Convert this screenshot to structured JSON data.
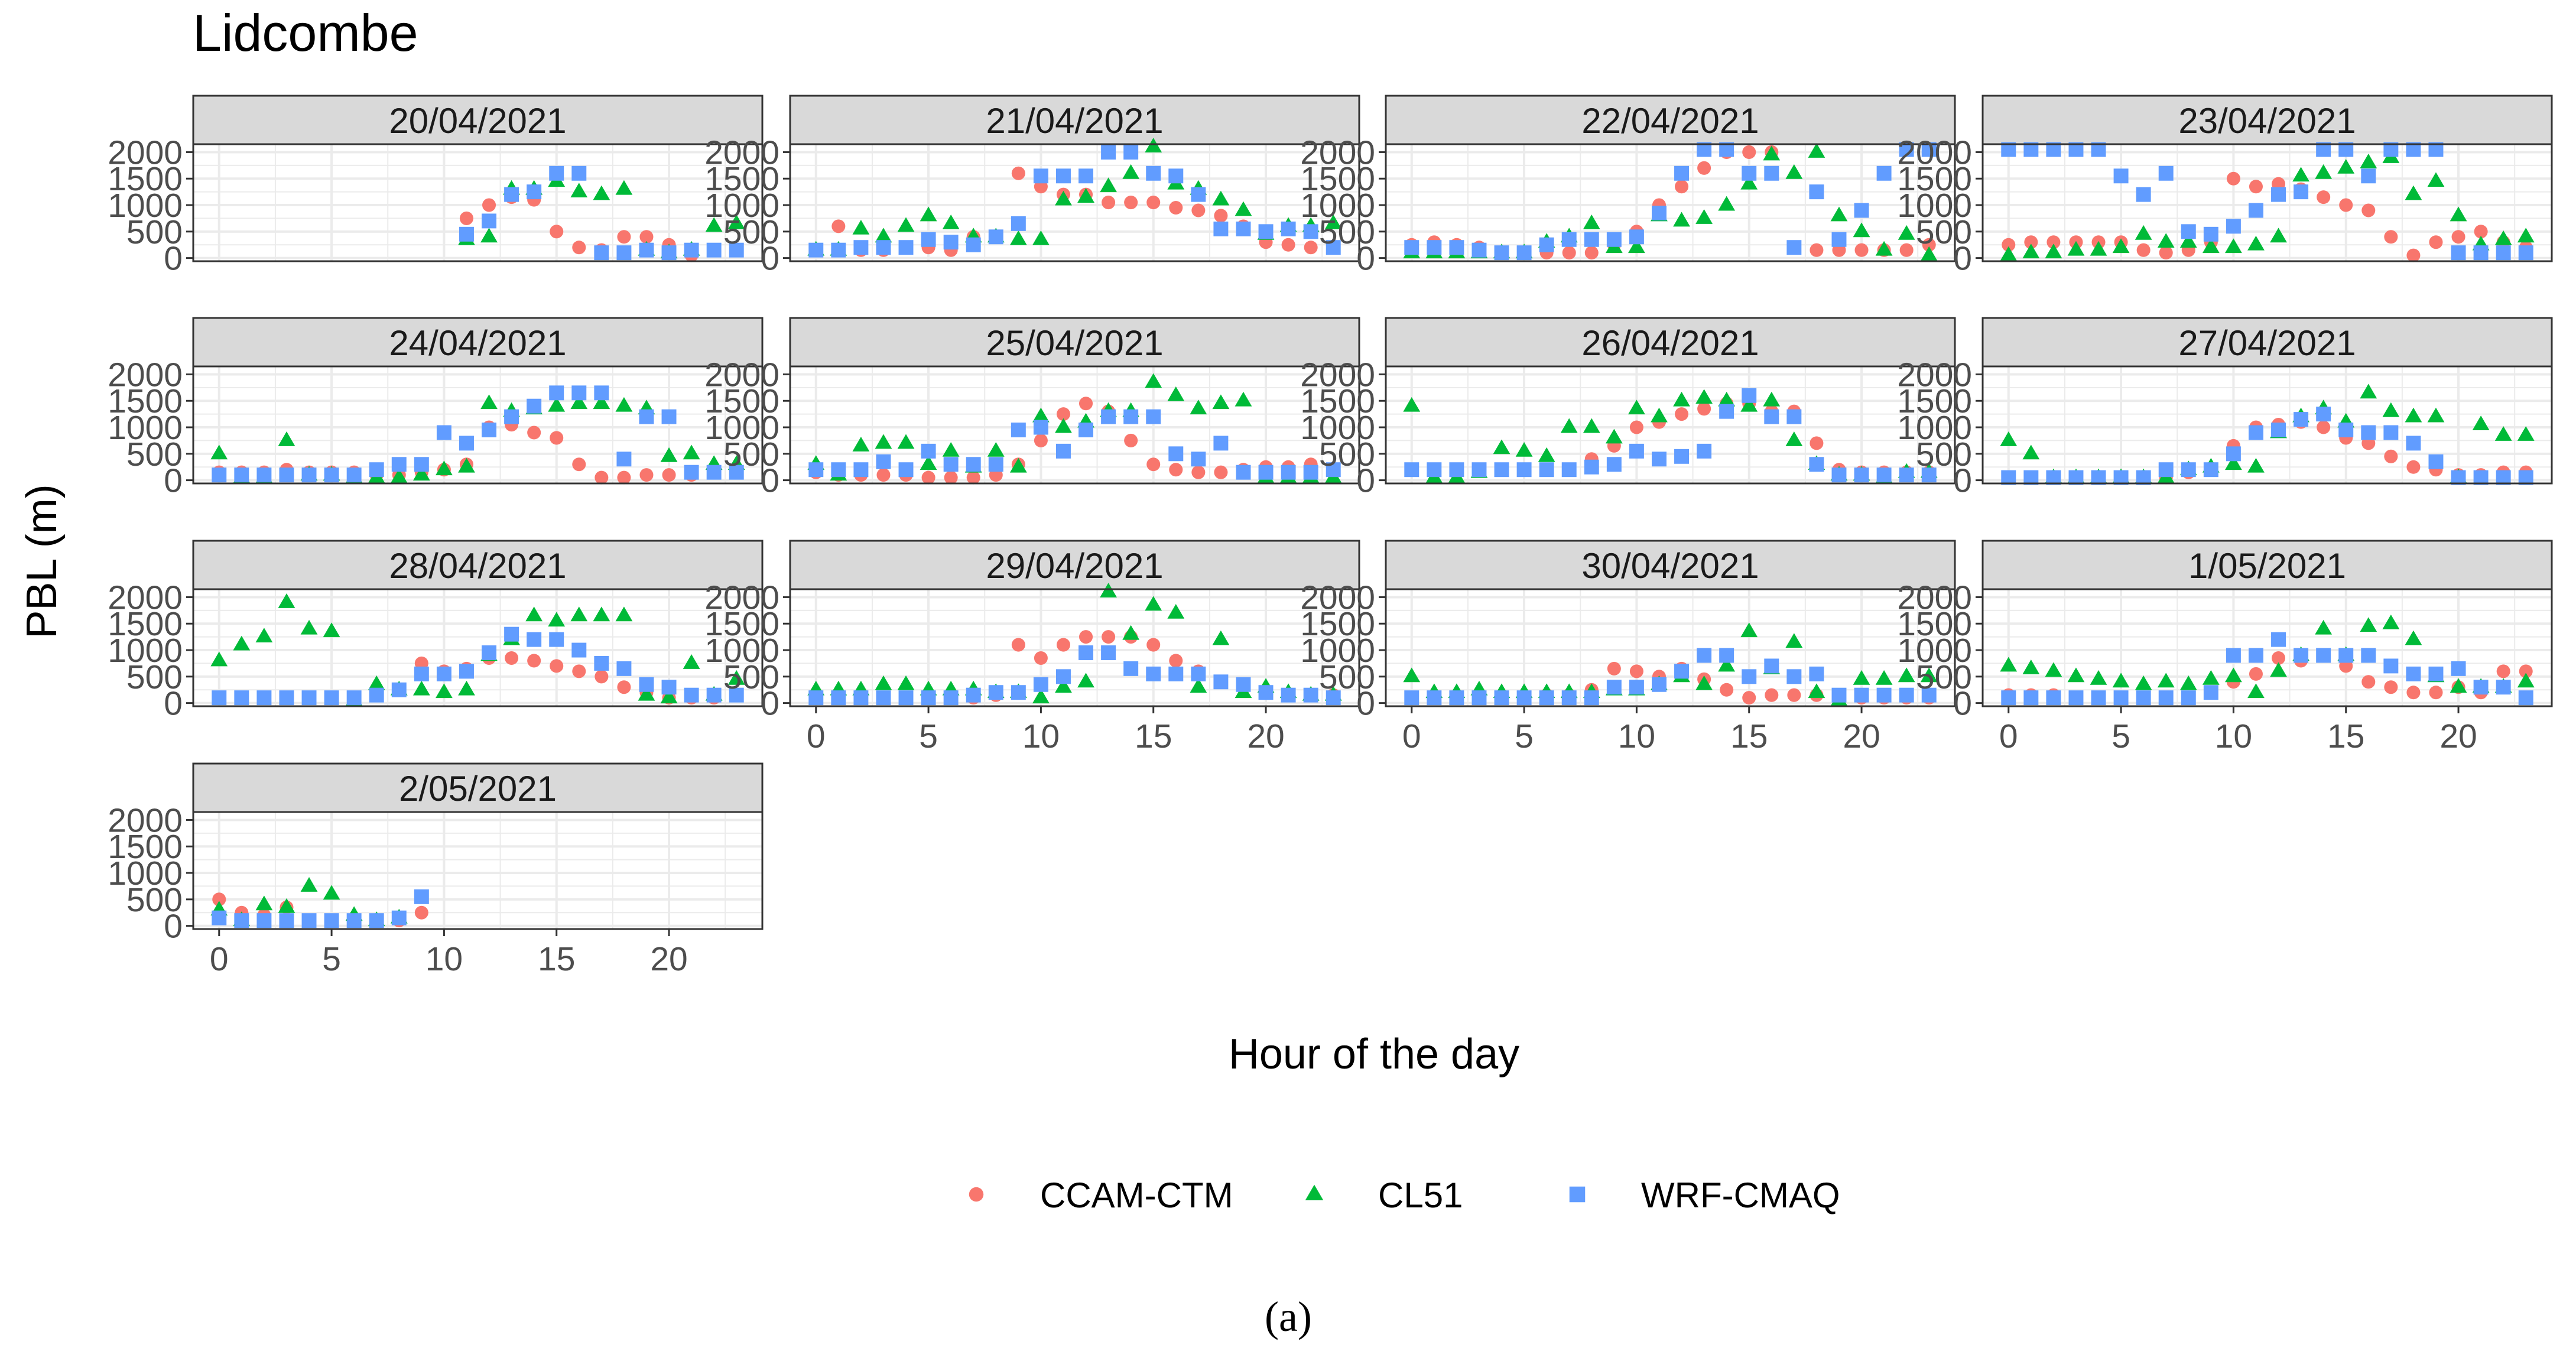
{
  "figure": {
    "title": "Lidcombe",
    "xlabel": "Hour of the day",
    "ylabel": "PBL (m)",
    "caption": "(a)"
  },
  "legend": {
    "placement": "bottom",
    "items": [
      {
        "label": "CCAM-CTM",
        "shape": "circle",
        "color": "#F8766D"
      },
      {
        "label": "CL51",
        "shape": "triangle",
        "color": "#00BA38"
      },
      {
        "label": "WRF-CMAQ",
        "shape": "square",
        "color": "#619CFF"
      }
    ]
  },
  "colors": {
    "strip_fill": "#d9d9d9",
    "grid": "#ebebeb",
    "border": "#333333",
    "tick_text": "#4d4d4d"
  },
  "chart_data": {
    "type": "scatter",
    "facet_by": "date",
    "x": [
      0,
      1,
      2,
      3,
      4,
      5,
      6,
      7,
      8,
      9,
      10,
      11,
      12,
      13,
      14,
      15,
      16,
      17,
      18,
      19,
      20,
      21,
      22,
      23
    ],
    "xlim": [
      -1.15,
      24.15
    ],
    "ylim": [
      -60,
      2150
    ],
    "xticks": [
      0,
      5,
      10,
      15,
      20
    ],
    "yticks": [
      0,
      500,
      1000,
      1500,
      2000
    ],
    "xlabel": "Hour of the day",
    "ylabel": "PBL (m)",
    "panels": [
      {
        "date": "20/04/2021",
        "CCAM-CTM": [
          null,
          null,
          null,
          null,
          null,
          null,
          null,
          null,
          null,
          null,
          null,
          750,
          1000,
          1150,
          1100,
          500,
          200,
          150,
          400,
          400,
          250,
          50,
          null,
          null
        ],
        "CL51": [
          null,
          null,
          null,
          null,
          null,
          null,
          null,
          null,
          null,
          null,
          null,
          350,
          400,
          1300,
          1300,
          1450,
          1250,
          1200,
          1300,
          150,
          100,
          150,
          600,
          650
        ],
        "WRF-CMAQ": [
          null,
          null,
          null,
          null,
          null,
          null,
          null,
          null,
          null,
          null,
          null,
          450,
          700,
          1200,
          1250,
          1600,
          1600,
          100,
          100,
          150,
          100,
          150,
          150,
          150
        ]
      },
      {
        "date": "21/04/2021",
        "CCAM-CTM": [
          150,
          600,
          150,
          150,
          200,
          200,
          150,
          400,
          400,
          1600,
          1350,
          1200,
          1200,
          1050,
          1050,
          1050,
          950,
          900,
          800,
          600,
          300,
          250,
          200,
          200
        ],
        "CL51": [
          150,
          150,
          550,
          400,
          600,
          800,
          650,
          400,
          400,
          350,
          350,
          1100,
          1150,
          1350,
          1600,
          2100,
          1400,
          1300,
          1100,
          900,
          450,
          600,
          600,
          650
        ],
        "WRF-CMAQ": [
          150,
          150,
          200,
          200,
          200,
          350,
          300,
          250,
          400,
          650,
          1550,
          1550,
          1550,
          2000,
          2000,
          1600,
          1550,
          1200,
          550,
          550,
          500,
          550,
          500,
          200
        ]
      },
      {
        "date": "22/04/2021",
        "CCAM-CTM": [
          250,
          300,
          250,
          200,
          100,
          100,
          100,
          100,
          100,
          250,
          500,
          1000,
          1350,
          1700,
          2000,
          2000,
          2000,
          200,
          150,
          150,
          150,
          150,
          150,
          250
        ],
        "CL51": [
          100,
          100,
          100,
          100,
          100,
          100,
          300,
          400,
          650,
          200,
          200,
          800,
          700,
          750,
          1000,
          1400,
          1950,
          1600,
          2000,
          800,
          500,
          150,
          450,
          50
        ],
        "WRF-CMAQ": [
          200,
          200,
          200,
          150,
          100,
          100,
          250,
          350,
          350,
          350,
          400,
          850,
          1600,
          2050,
          2050,
          1600,
          1600,
          200,
          1250,
          350,
          900,
          1600,
          2050,
          2050
        ]
      },
      {
        "date": "23/04/2021",
        "CCAM-CTM": [
          250,
          300,
          300,
          300,
          300,
          300,
          150,
          100,
          150,
          300,
          1500,
          1350,
          1400,
          1300,
          1150,
          1000,
          900,
          400,
          50,
          300,
          400,
          500,
          300,
          200
        ],
        "CL51": [
          50,
          100,
          100,
          150,
          150,
          200,
          450,
          300,
          300,
          200,
          200,
          250,
          400,
          1550,
          1600,
          1700,
          1800,
          1900,
          1200,
          1450,
          800,
          250,
          350,
          400
        ],
        "WRF-CMAQ": [
          2050,
          2050,
          2050,
          2050,
          2050,
          1550,
          1200,
          1600,
          500,
          450,
          600,
          900,
          1200,
          1250,
          2050,
          2050,
          1550,
          2050,
          2050,
          2050,
          100,
          100,
          100,
          100
        ]
      },
      {
        "date": "24/04/2021",
        "CCAM-CTM": [
          150,
          150,
          150,
          200,
          150,
          150,
          150,
          100,
          100,
          150,
          200,
          300,
          1000,
          1050,
          900,
          800,
          300,
          50,
          50,
          100,
          100,
          100,
          null,
          null
        ],
        "CL51": [
          500,
          50,
          50,
          750,
          100,
          100,
          50,
          50,
          50,
          100,
          200,
          250,
          1450,
          1300,
          1350,
          1400,
          1450,
          1450,
          1400,
          1350,
          450,
          500,
          300,
          300
        ],
        "WRF-CMAQ": [
          100,
          100,
          100,
          100,
          100,
          100,
          100,
          200,
          300,
          300,
          900,
          700,
          950,
          1200,
          1400,
          1650,
          1650,
          1650,
          400,
          1200,
          1200,
          150,
          150,
          150
        ]
      },
      {
        "date": "25/04/2021",
        "CCAM-CTM": [
          150,
          100,
          100,
          100,
          100,
          50,
          50,
          50,
          100,
          300,
          750,
          1250,
          1450,
          1300,
          750,
          300,
          200,
          150,
          150,
          200,
          250,
          250,
          300,
          200
        ],
        "CL51": [
          300,
          100,
          650,
          700,
          700,
          300,
          550,
          250,
          550,
          250,
          1200,
          1000,
          1100,
          1300,
          1300,
          1850,
          1600,
          1350,
          1450,
          1500,
          50,
          50,
          50,
          50
        ],
        "WRF-CMAQ": [
          200,
          200,
          200,
          350,
          200,
          550,
          300,
          300,
          300,
          950,
          1000,
          550,
          950,
          1200,
          1200,
          1200,
          500,
          400,
          700,
          150,
          150,
          150,
          150,
          200
        ]
      },
      {
        "date": "26/04/2021",
        "CCAM-CTM": [
          200,
          200,
          200,
          200,
          200,
          200,
          200,
          200,
          400,
          650,
          1000,
          1100,
          1250,
          1350,
          1450,
          1450,
          1300,
          1300,
          700,
          200,
          150,
          150,
          150,
          150
        ],
        "CL51": [
          1400,
          50,
          50,
          150,
          600,
          550,
          450,
          1000,
          1000,
          800,
          1350,
          1200,
          1500,
          1550,
          1500,
          1400,
          1500,
          750,
          300,
          100,
          100,
          50,
          150,
          150
        ],
        "WRF-CMAQ": [
          200,
          200,
          200,
          200,
          200,
          200,
          200,
          200,
          250,
          300,
          550,
          400,
          450,
          550,
          1300,
          1600,
          1200,
          1200,
          300,
          100,
          100,
          100,
          100,
          100
        ]
      },
      {
        "date": "27/04/2021",
        "CCAM-CTM": [
          50,
          50,
          50,
          50,
          50,
          50,
          50,
          50,
          150,
          200,
          650,
          1000,
          1050,
          1100,
          1000,
          800,
          700,
          450,
          250,
          200,
          100,
          100,
          150,
          150
        ],
        "CL51": [
          750,
          500,
          50,
          50,
          50,
          50,
          50,
          50,
          200,
          250,
          300,
          250,
          900,
          1200,
          1350,
          1100,
          1650,
          1300,
          1200,
          1200,
          50,
          1050,
          850,
          850
        ],
        "WRF-CMAQ": [
          50,
          50,
          50,
          50,
          50,
          50,
          50,
          200,
          200,
          200,
          500,
          900,
          950,
          1150,
          1250,
          950,
          900,
          900,
          700,
          350,
          50,
          50,
          50,
          50
        ]
      },
      {
        "date": "28/04/2021",
        "CCAM-CTM": [
          100,
          100,
          100,
          100,
          100,
          100,
          100,
          150,
          250,
          750,
          600,
          650,
          850,
          850,
          800,
          700,
          600,
          500,
          300,
          200,
          100,
          100,
          100,
          150
        ],
        "CL51": [
          800,
          1100,
          1250,
          1900,
          1400,
          1350,
          50,
          350,
          250,
          250,
          200,
          250,
          900,
          1200,
          1650,
          1550,
          1650,
          1650,
          1650,
          150,
          100,
          750,
          150,
          450
        ],
        "WRF-CMAQ": [
          100,
          100,
          100,
          100,
          100,
          100,
          100,
          150,
          250,
          550,
          550,
          600,
          950,
          1300,
          1200,
          1200,
          1000,
          750,
          650,
          350,
          300,
          150,
          150,
          150
        ]
      },
      {
        "date": "29/04/2021",
        "CCAM-CTM": [
          150,
          100,
          100,
          100,
          100,
          100,
          100,
          100,
          150,
          1100,
          850,
          1100,
          1250,
          1250,
          1250,
          1100,
          800,
          600,
          400,
          300,
          200,
          150,
          150,
          150
        ],
        "CL51": [
          250,
          250,
          250,
          350,
          350,
          250,
          250,
          250,
          200,
          200,
          100,
          300,
          400,
          2100,
          1300,
          1850,
          1700,
          300,
          1200,
          200,
          300,
          200,
          150,
          150
        ],
        "WRF-CMAQ": [
          100,
          100,
          100,
          100,
          100,
          100,
          100,
          150,
          200,
          200,
          350,
          500,
          950,
          950,
          650,
          550,
          550,
          550,
          400,
          350,
          200,
          150,
          150,
          100
        ]
      },
      {
        "date": "30/04/2021",
        "CCAM-CTM": [
          100,
          100,
          100,
          100,
          100,
          100,
          150,
          150,
          250,
          650,
          600,
          500,
          650,
          450,
          250,
          100,
          150,
          150,
          150,
          100,
          100,
          100,
          100,
          100
        ],
        "CL51": [
          500,
          200,
          200,
          250,
          200,
          200,
          200,
          200,
          200,
          250,
          250,
          350,
          500,
          350,
          700,
          1350,
          650,
          1150,
          200,
          50,
          450,
          450,
          500,
          500
        ],
        "WRF-CMAQ": [
          100,
          100,
          100,
          100,
          100,
          100,
          100,
          100,
          100,
          300,
          300,
          350,
          600,
          900,
          900,
          500,
          700,
          500,
          550,
          150,
          150,
          150,
          150,
          150
        ]
      },
      {
        "date": "1/05/2021",
        "CCAM-CTM": [
          150,
          150,
          150,
          100,
          100,
          100,
          100,
          100,
          100,
          200,
          400,
          550,
          850,
          800,
          900,
          700,
          400,
          300,
          200,
          200,
          300,
          200,
          600,
          600
        ],
        "CL51": [
          700,
          650,
          600,
          500,
          450,
          400,
          350,
          400,
          350,
          450,
          500,
          200,
          600,
          900,
          1400,
          900,
          1450,
          1500,
          1200,
          500,
          300,
          300,
          300,
          400
        ],
        "WRF-CMAQ": [
          100,
          100,
          100,
          100,
          100,
          100,
          100,
          100,
          100,
          200,
          900,
          900,
          1200,
          900,
          900,
          900,
          900,
          700,
          550,
          550,
          650,
          300,
          300,
          100
        ]
      },
      {
        "date": "2/05/2021",
        "CCAM-CTM": [
          500,
          250,
          200,
          350,
          null,
          null,
          100,
          100,
          100,
          250,
          null,
          null,
          null,
          null,
          null,
          null,
          null,
          null,
          null,
          null,
          null,
          null,
          null,
          null
        ],
        "CL51": [
          300,
          100,
          400,
          350,
          750,
          600,
          200,
          100,
          150,
          null,
          null,
          null,
          null,
          null,
          null,
          null,
          null,
          null,
          null,
          null,
          null,
          null,
          null,
          null
        ],
        "WRF-CMAQ": [
          150,
          100,
          100,
          100,
          100,
          100,
          100,
          100,
          150,
          550,
          null,
          null,
          null,
          null,
          null,
          null,
          null,
          null,
          null,
          null,
          null,
          null,
          null,
          null
        ]
      }
    ]
  }
}
